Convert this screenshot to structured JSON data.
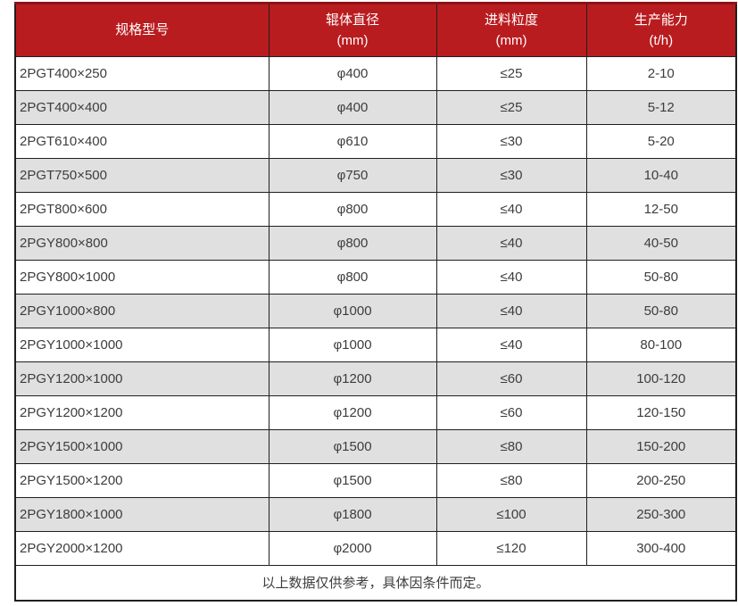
{
  "table": {
    "columns": [
      {
        "label": "规格型号",
        "unit": ""
      },
      {
        "label": "辊体直径",
        "unit": "(mm)"
      },
      {
        "label": "进料粒度",
        "unit": "(mm)"
      },
      {
        "label": "生产能力",
        "unit": "(t/h)"
      }
    ],
    "rows": [
      [
        "2PGT400×250",
        "φ400",
        "≤25",
        "2-10"
      ],
      [
        "2PGT400×400",
        "φ400",
        "≤25",
        "5-12"
      ],
      [
        "2PGT610×400",
        "φ610",
        "≤30",
        "5-20"
      ],
      [
        "2PGT750×500",
        "φ750",
        "≤30",
        "10-40"
      ],
      [
        "2PGT800×600",
        "φ800",
        "≤40",
        "12-50"
      ],
      [
        "2PGY800×800",
        "φ800",
        "≤40",
        "40-50"
      ],
      [
        "2PGY800×1000",
        "φ800",
        "≤40",
        "50-80"
      ],
      [
        "2PGY1000×800",
        "φ1000",
        "≤40",
        "50-80"
      ],
      [
        "2PGY1000×1000",
        "φ1000",
        "≤40",
        "80-100"
      ],
      [
        "2PGY1200×1000",
        "φ1200",
        "≤60",
        "100-120"
      ],
      [
        "2PGY1200×1200",
        "φ1200",
        "≤60",
        "120-150"
      ],
      [
        "2PGY1500×1000",
        "φ1500",
        "≤80",
        "150-200"
      ],
      [
        "2PGY1500×1200",
        "φ1500",
        "≤80",
        "200-250"
      ],
      [
        "2PGY1800×1000",
        "φ1800",
        "≤100",
        "250-300"
      ],
      [
        "2PGY2000×1200",
        "φ2000",
        "≤120",
        "300-400"
      ]
    ],
    "footer_note": "以上数据仅供参考，具体因条件而定。",
    "colors": {
      "header_bg": "#b91c1f",
      "header_top_border": "#8d1215",
      "header_text": "#ffffff",
      "row_alt_bg": "#e0e0e0",
      "border": "#1f1f1f",
      "text": "#3d3d3d"
    }
  }
}
